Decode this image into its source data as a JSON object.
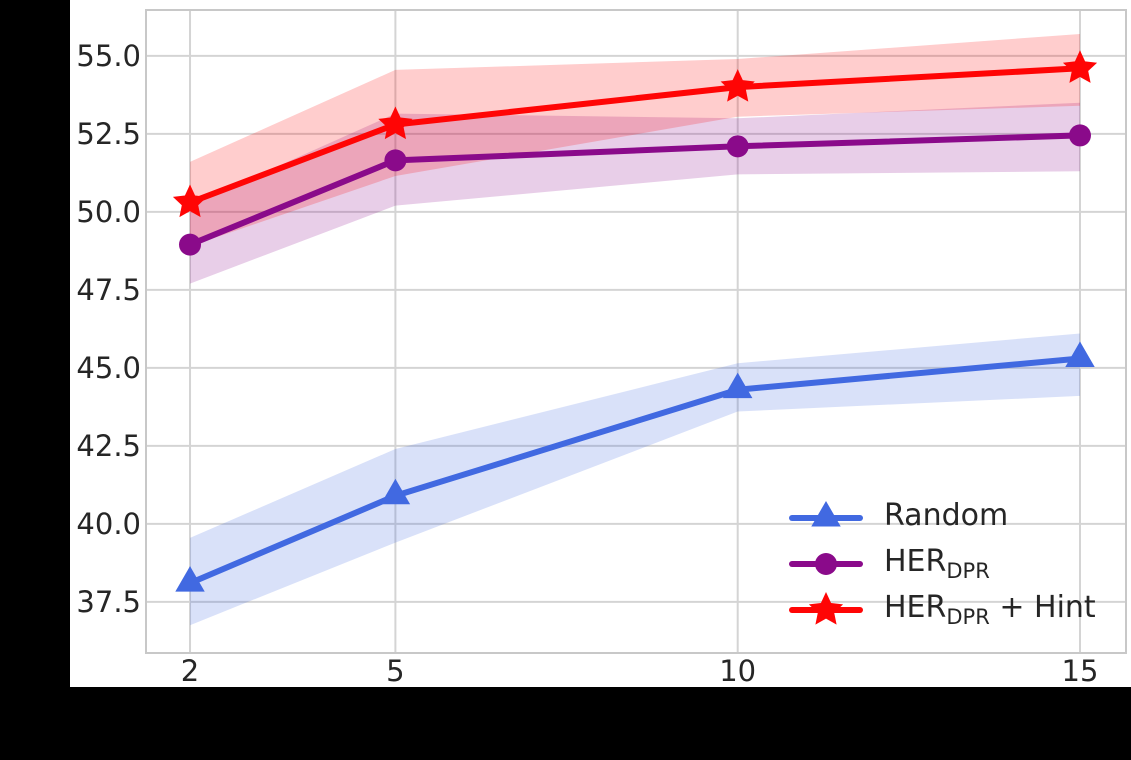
{
  "colors": {
    "background": "#000000",
    "figure": "#ffffff",
    "grid": "#d4d4d4",
    "spine": "#c8c8c8",
    "text": "#262626",
    "random": "#4169E1",
    "her_dpr": "#8A0A8A",
    "her_dpr_hint": "#FF0505"
  },
  "chart_data": {
    "type": "line",
    "title": "",
    "xlabel": "",
    "ylabel": "",
    "grid": true,
    "legend_position": "lower right",
    "x": [
      2,
      5,
      10,
      15
    ],
    "x_tick_labels": [
      "2",
      "5",
      "10",
      "15"
    ],
    "y_ticks": [
      37.5,
      40.0,
      42.5,
      45.0,
      47.5,
      50.0,
      52.5,
      55.0
    ],
    "y_tick_labels": [
      "37.5",
      "40.0",
      "42.5",
      "45.0",
      "47.5",
      "50.0",
      "52.5",
      "55.0"
    ],
    "xlim": [
      1.357,
      15.672
    ],
    "ylim": [
      35.86,
      56.47
    ],
    "band_opacity": 0.2,
    "series": [
      {
        "name": "Random",
        "label_main": "Random",
        "label_sub": "",
        "label_suffix": "",
        "color": "#4169E1",
        "marker": "triangle",
        "values": [
          38.1,
          40.9,
          44.3,
          45.3
        ],
        "band_low": [
          36.75,
          39.4,
          43.6,
          44.1
        ],
        "band_high": [
          39.55,
          42.4,
          45.15,
          46.1
        ]
      },
      {
        "name": "HER_DPR",
        "label_main": "HER",
        "label_sub": "DPR",
        "label_suffix": "",
        "color": "#8A0A8A",
        "marker": "circle",
        "values": [
          48.95,
          51.65,
          52.1,
          52.45
        ],
        "band_low": [
          47.7,
          50.2,
          51.2,
          51.3
        ],
        "band_high": [
          50.2,
          53.15,
          53.0,
          53.5
        ]
      },
      {
        "name": "HER_DPR + Hint",
        "label_main": "HER",
        "label_sub": "DPR",
        "label_suffix": " + Hint",
        "color": "#FF0505",
        "marker": "star",
        "values": [
          50.3,
          52.8,
          54.0,
          54.6
        ],
        "band_low": [
          48.9,
          51.15,
          53.05,
          53.4
        ],
        "band_high": [
          51.6,
          54.55,
          54.9,
          55.7
        ]
      }
    ]
  }
}
